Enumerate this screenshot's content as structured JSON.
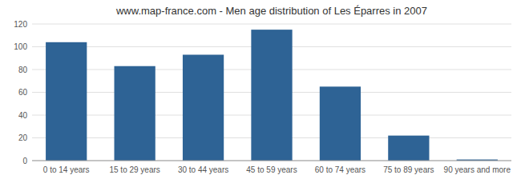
{
  "chart_data": {
    "type": "bar",
    "title": "www.map-france.com - Men age distribution of Les Éparres in 2007",
    "categories": [
      "0 to 14 years",
      "15 to 29 years",
      "30 to 44 years",
      "45 to 59 years",
      "60 to 74 years",
      "75 to 89 years",
      "90 years and more"
    ],
    "values": [
      104,
      83,
      93,
      115,
      65,
      22,
      1
    ],
    "color": "#2e6395",
    "ylim": [
      0,
      120
    ],
    "yticks": [
      0,
      20,
      40,
      60,
      80,
      100,
      120
    ],
    "grid": true
  }
}
